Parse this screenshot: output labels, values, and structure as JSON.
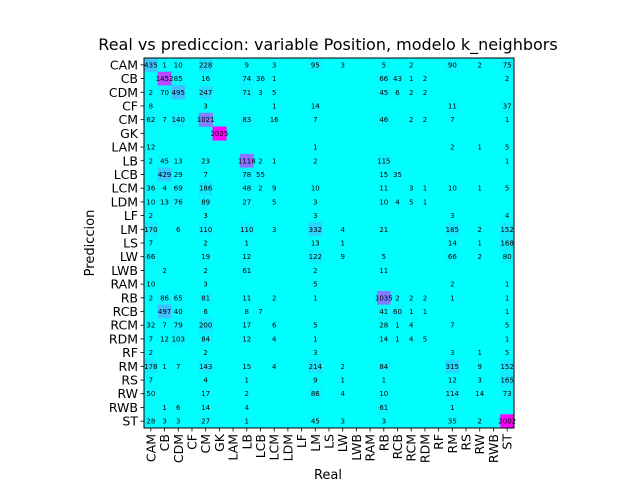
{
  "chart_data": {
    "type": "heatmap",
    "title": "Real vs prediccion: variable Position, modelo k_neighbors",
    "xlabel": "Real",
    "ylabel": "Prediccion",
    "x_categories": [
      "CAM",
      "CB",
      "CDM",
      "CF",
      "CM",
      "GK",
      "LAM",
      "LB",
      "LCB",
      "LCM",
      "LDM",
      "LF",
      "LM",
      "LS",
      "LW",
      "LWB",
      "RAM",
      "RB",
      "RCB",
      "RCM",
      "RDM",
      "RF",
      "RM",
      "RS",
      "RW",
      "RWB",
      "ST"
    ],
    "y_categories": [
      "CAM",
      "CB",
      "CDM",
      "CF",
      "CM",
      "GK",
      "LAM",
      "LB",
      "LCB",
      "LCM",
      "LDM",
      "LF",
      "LM",
      "LS",
      "LW",
      "LWB",
      "RAM",
      "RB",
      "RCB",
      "RCM",
      "RDM",
      "RF",
      "RM",
      "RS",
      "RW",
      "RWB",
      "ST"
    ],
    "colorscale": [
      "#00ffff",
      "#ff00ff"
    ],
    "cells": [
      {
        "row": 0,
        "col": 0,
        "value": 435
      },
      {
        "row": 0,
        "col": 1,
        "value": 1
      },
      {
        "row": 0,
        "col": 2,
        "value": 10
      },
      {
        "row": 0,
        "col": 4,
        "value": 228
      },
      {
        "row": 0,
        "col": 7,
        "value": 9
      },
      {
        "row": 0,
        "col": 9,
        "value": 3
      },
      {
        "row": 0,
        "col": 12,
        "value": 95
      },
      {
        "row": 0,
        "col": 14,
        "value": 3
      },
      {
        "row": 0,
        "col": 17,
        "value": 5
      },
      {
        "row": 0,
        "col": 19,
        "value": 2
      },
      {
        "row": 0,
        "col": 22,
        "value": 90
      },
      {
        "row": 0,
        "col": 24,
        "value": 2
      },
      {
        "row": 0,
        "col": 26,
        "value": 75
      },
      {
        "row": 1,
        "col": 1,
        "value": 1452
      },
      {
        "row": 1,
        "col": 2,
        "value": 85
      },
      {
        "row": 1,
        "col": 4,
        "value": 16
      },
      {
        "row": 1,
        "col": 7,
        "value": 74
      },
      {
        "row": 1,
        "col": 8,
        "value": 36
      },
      {
        "row": 1,
        "col": 9,
        "value": 1
      },
      {
        "row": 1,
        "col": 17,
        "value": 66
      },
      {
        "row": 1,
        "col": 18,
        "value": 43
      },
      {
        "row": 1,
        "col": 19,
        "value": 1
      },
      {
        "row": 1,
        "col": 20,
        "value": 2
      },
      {
        "row": 1,
        "col": 26,
        "value": 2
      },
      {
        "row": 2,
        "col": 0,
        "value": 2
      },
      {
        "row": 2,
        "col": 1,
        "value": 70
      },
      {
        "row": 2,
        "col": 2,
        "value": 495
      },
      {
        "row": 2,
        "col": 4,
        "value": 247
      },
      {
        "row": 2,
        "col": 7,
        "value": 71
      },
      {
        "row": 2,
        "col": 8,
        "value": 3
      },
      {
        "row": 2,
        "col": 9,
        "value": 5
      },
      {
        "row": 2,
        "col": 17,
        "value": 45
      },
      {
        "row": 2,
        "col": 18,
        "value": 6
      },
      {
        "row": 2,
        "col": 19,
        "value": 2
      },
      {
        "row": 2,
        "col": 20,
        "value": 2
      },
      {
        "row": 3,
        "col": 0,
        "value": 8
      },
      {
        "row": 3,
        "col": 4,
        "value": 3
      },
      {
        "row": 3,
        "col": 9,
        "value": 1
      },
      {
        "row": 3,
        "col": 12,
        "value": 14
      },
      {
        "row": 3,
        "col": 22,
        "value": 11
      },
      {
        "row": 3,
        "col": 26,
        "value": 37
      },
      {
        "row": 4,
        "col": 0,
        "value": 62
      },
      {
        "row": 4,
        "col": 1,
        "value": 7
      },
      {
        "row": 4,
        "col": 2,
        "value": 140
      },
      {
        "row": 4,
        "col": 4,
        "value": 1021
      },
      {
        "row": 4,
        "col": 7,
        "value": 83
      },
      {
        "row": 4,
        "col": 9,
        "value": 16
      },
      {
        "row": 4,
        "col": 12,
        "value": 7
      },
      {
        "row": 4,
        "col": 17,
        "value": 46
      },
      {
        "row": 4,
        "col": 19,
        "value": 2
      },
      {
        "row": 4,
        "col": 20,
        "value": 2
      },
      {
        "row": 4,
        "col": 22,
        "value": 7
      },
      {
        "row": 4,
        "col": 26,
        "value": 1
      },
      {
        "row": 5,
        "col": 5,
        "value": 2025
      },
      {
        "row": 6,
        "col": 0,
        "value": 12
      },
      {
        "row": 6,
        "col": 12,
        "value": 1
      },
      {
        "row": 6,
        "col": 22,
        "value": 2
      },
      {
        "row": 6,
        "col": 24,
        "value": 1
      },
      {
        "row": 6,
        "col": 26,
        "value": 5
      },
      {
        "row": 7,
        "col": 0,
        "value": 2
      },
      {
        "row": 7,
        "col": 1,
        "value": 45
      },
      {
        "row": 7,
        "col": 2,
        "value": 13
      },
      {
        "row": 7,
        "col": 4,
        "value": 23
      },
      {
        "row": 7,
        "col": 7,
        "value": 1118
      },
      {
        "row": 7,
        "col": 8,
        "value": 2
      },
      {
        "row": 7,
        "col": 9,
        "value": 1
      },
      {
        "row": 7,
        "col": 12,
        "value": 2
      },
      {
        "row": 7,
        "col": 17,
        "value": 115
      },
      {
        "row": 7,
        "col": 26,
        "value": 1
      },
      {
        "row": 8,
        "col": 1,
        "value": 429
      },
      {
        "row": 8,
        "col": 2,
        "value": 29
      },
      {
        "row": 8,
        "col": 4,
        "value": 7
      },
      {
        "row": 8,
        "col": 7,
        "value": 78
      },
      {
        "row": 8,
        "col": 8,
        "value": 55
      },
      {
        "row": 8,
        "col": 17,
        "value": 15
      },
      {
        "row": 8,
        "col": 18,
        "value": 35
      },
      {
        "row": 9,
        "col": 0,
        "value": 36
      },
      {
        "row": 9,
        "col": 1,
        "value": 4
      },
      {
        "row": 9,
        "col": 2,
        "value": 69
      },
      {
        "row": 9,
        "col": 4,
        "value": 186
      },
      {
        "row": 9,
        "col": 7,
        "value": 48
      },
      {
        "row": 9,
        "col": 8,
        "value": 2
      },
      {
        "row": 9,
        "col": 9,
        "value": 9
      },
      {
        "row": 9,
        "col": 12,
        "value": 10
      },
      {
        "row": 9,
        "col": 17,
        "value": 11
      },
      {
        "row": 9,
        "col": 19,
        "value": 3
      },
      {
        "row": 9,
        "col": 20,
        "value": 1
      },
      {
        "row": 9,
        "col": 22,
        "value": 10
      },
      {
        "row": 9,
        "col": 24,
        "value": 1
      },
      {
        "row": 9,
        "col": 26,
        "value": 5
      },
      {
        "row": 10,
        "col": 0,
        "value": 10
      },
      {
        "row": 10,
        "col": 1,
        "value": 13
      },
      {
        "row": 10,
        "col": 2,
        "value": 76
      },
      {
        "row": 10,
        "col": 4,
        "value": 89
      },
      {
        "row": 10,
        "col": 7,
        "value": 27
      },
      {
        "row": 10,
        "col": 9,
        "value": 5
      },
      {
        "row": 10,
        "col": 12,
        "value": 3
      },
      {
        "row": 10,
        "col": 17,
        "value": 10
      },
      {
        "row": 10,
        "col": 18,
        "value": 4
      },
      {
        "row": 10,
        "col": 19,
        "value": 5
      },
      {
        "row": 10,
        "col": 20,
        "value": 1
      },
      {
        "row": 11,
        "col": 0,
        "value": 2
      },
      {
        "row": 11,
        "col": 4,
        "value": 3
      },
      {
        "row": 11,
        "col": 12,
        "value": 3
      },
      {
        "row": 11,
        "col": 22,
        "value": 3
      },
      {
        "row": 11,
        "col": 26,
        "value": 4
      },
      {
        "row": 12,
        "col": 0,
        "value": 170
      },
      {
        "row": 12,
        "col": 2,
        "value": 6
      },
      {
        "row": 12,
        "col": 4,
        "value": 110
      },
      {
        "row": 12,
        "col": 7,
        "value": 110
      },
      {
        "row": 12,
        "col": 9,
        "value": 3
      },
      {
        "row": 12,
        "col": 12,
        "value": 332
      },
      {
        "row": 12,
        "col": 14,
        "value": 4
      },
      {
        "row": 12,
        "col": 17,
        "value": 21
      },
      {
        "row": 12,
        "col": 22,
        "value": 185
      },
      {
        "row": 12,
        "col": 24,
        "value": 2
      },
      {
        "row": 12,
        "col": 26,
        "value": 152
      },
      {
        "row": 13,
        "col": 0,
        "value": 7
      },
      {
        "row": 13,
        "col": 4,
        "value": 2
      },
      {
        "row": 13,
        "col": 7,
        "value": 1
      },
      {
        "row": 13,
        "col": 12,
        "value": 13
      },
      {
        "row": 13,
        "col": 14,
        "value": 1
      },
      {
        "row": 13,
        "col": 22,
        "value": 14
      },
      {
        "row": 13,
        "col": 24,
        "value": 1
      },
      {
        "row": 13,
        "col": 26,
        "value": 168
      },
      {
        "row": 14,
        "col": 0,
        "value": 66
      },
      {
        "row": 14,
        "col": 4,
        "value": 19
      },
      {
        "row": 14,
        "col": 7,
        "value": 12
      },
      {
        "row": 14,
        "col": 12,
        "value": 122
      },
      {
        "row": 14,
        "col": 14,
        "value": 9
      },
      {
        "row": 14,
        "col": 17,
        "value": 5
      },
      {
        "row": 14,
        "col": 22,
        "value": 66
      },
      {
        "row": 14,
        "col": 24,
        "value": 2
      },
      {
        "row": 14,
        "col": 26,
        "value": 80
      },
      {
        "row": 15,
        "col": 1,
        "value": 2
      },
      {
        "row": 15,
        "col": 4,
        "value": 2
      },
      {
        "row": 15,
        "col": 7,
        "value": 61
      },
      {
        "row": 15,
        "col": 12,
        "value": 2
      },
      {
        "row": 15,
        "col": 17,
        "value": 11
      },
      {
        "row": 16,
        "col": 0,
        "value": 10
      },
      {
        "row": 16,
        "col": 4,
        "value": 3
      },
      {
        "row": 16,
        "col": 12,
        "value": 5
      },
      {
        "row": 16,
        "col": 22,
        "value": 2
      },
      {
        "row": 16,
        "col": 26,
        "value": 1
      },
      {
        "row": 17,
        "col": 0,
        "value": 2
      },
      {
        "row": 17,
        "col": 1,
        "value": 86
      },
      {
        "row": 17,
        "col": 2,
        "value": 65
      },
      {
        "row": 17,
        "col": 4,
        "value": 81
      },
      {
        "row": 17,
        "col": 7,
        "value": 11
      },
      {
        "row": 17,
        "col": 9,
        "value": 2
      },
      {
        "row": 17,
        "col": 12,
        "value": 1
      },
      {
        "row": 17,
        "col": 17,
        "value": 1035
      },
      {
        "row": 17,
        "col": 18,
        "value": 2
      },
      {
        "row": 17,
        "col": 19,
        "value": 2
      },
      {
        "row": 17,
        "col": 20,
        "value": 2
      },
      {
        "row": 17,
        "col": 22,
        "value": 1
      },
      {
        "row": 17,
        "col": 26,
        "value": 1
      },
      {
        "row": 18,
        "col": 1,
        "value": 497
      },
      {
        "row": 18,
        "col": 2,
        "value": 40
      },
      {
        "row": 18,
        "col": 4,
        "value": 6
      },
      {
        "row": 18,
        "col": 7,
        "value": 8
      },
      {
        "row": 18,
        "col": 8,
        "value": 7
      },
      {
        "row": 18,
        "col": 17,
        "value": 41
      },
      {
        "row": 18,
        "col": 18,
        "value": 60
      },
      {
        "row": 18,
        "col": 19,
        "value": 1
      },
      {
        "row": 18,
        "col": 20,
        "value": 1
      },
      {
        "row": 18,
        "col": 26,
        "value": 1
      },
      {
        "row": 19,
        "col": 0,
        "value": 32
      },
      {
        "row": 19,
        "col": 1,
        "value": 7
      },
      {
        "row": 19,
        "col": 2,
        "value": 79
      },
      {
        "row": 19,
        "col": 4,
        "value": 200
      },
      {
        "row": 19,
        "col": 7,
        "value": 17
      },
      {
        "row": 19,
        "col": 9,
        "value": 6
      },
      {
        "row": 19,
        "col": 12,
        "value": 5
      },
      {
        "row": 19,
        "col": 17,
        "value": 28
      },
      {
        "row": 19,
        "col": 18,
        "value": 1
      },
      {
        "row": 19,
        "col": 19,
        "value": 4
      },
      {
        "row": 19,
        "col": 22,
        "value": 7
      },
      {
        "row": 19,
        "col": 26,
        "value": 5
      },
      {
        "row": 20,
        "col": 0,
        "value": 7
      },
      {
        "row": 20,
        "col": 1,
        "value": 12
      },
      {
        "row": 20,
        "col": 2,
        "value": 103
      },
      {
        "row": 20,
        "col": 4,
        "value": 84
      },
      {
        "row": 20,
        "col": 7,
        "value": 12
      },
      {
        "row": 20,
        "col": 9,
        "value": 4
      },
      {
        "row": 20,
        "col": 12,
        "value": 1
      },
      {
        "row": 20,
        "col": 17,
        "value": 14
      },
      {
        "row": 20,
        "col": 18,
        "value": 1
      },
      {
        "row": 20,
        "col": 19,
        "value": 4
      },
      {
        "row": 20,
        "col": 20,
        "value": 5
      },
      {
        "row": 20,
        "col": 26,
        "value": 1
      },
      {
        "row": 21,
        "col": 0,
        "value": 2
      },
      {
        "row": 21,
        "col": 4,
        "value": 2
      },
      {
        "row": 21,
        "col": 12,
        "value": 3
      },
      {
        "row": 21,
        "col": 22,
        "value": 3
      },
      {
        "row": 21,
        "col": 24,
        "value": 1
      },
      {
        "row": 21,
        "col": 26,
        "value": 5
      },
      {
        "row": 22,
        "col": 0,
        "value": 178
      },
      {
        "row": 22,
        "col": 1,
        "value": 1
      },
      {
        "row": 22,
        "col": 2,
        "value": 7
      },
      {
        "row": 22,
        "col": 4,
        "value": 143
      },
      {
        "row": 22,
        "col": 7,
        "value": 15
      },
      {
        "row": 22,
        "col": 9,
        "value": 4
      },
      {
        "row": 22,
        "col": 12,
        "value": 214
      },
      {
        "row": 22,
        "col": 14,
        "value": 2
      },
      {
        "row": 22,
        "col": 17,
        "value": 84
      },
      {
        "row": 22,
        "col": 22,
        "value": 315
      },
      {
        "row": 22,
        "col": 24,
        "value": 9
      },
      {
        "row": 22,
        "col": 26,
        "value": 152
      },
      {
        "row": 23,
        "col": 0,
        "value": 7
      },
      {
        "row": 23,
        "col": 4,
        "value": 4
      },
      {
        "row": 23,
        "col": 7,
        "value": 1
      },
      {
        "row": 23,
        "col": 12,
        "value": 9
      },
      {
        "row": 23,
        "col": 14,
        "value": 1
      },
      {
        "row": 23,
        "col": 17,
        "value": 1
      },
      {
        "row": 23,
        "col": 22,
        "value": 12
      },
      {
        "row": 23,
        "col": 24,
        "value": 3
      },
      {
        "row": 23,
        "col": 26,
        "value": 165
      },
      {
        "row": 24,
        "col": 0,
        "value": 50
      },
      {
        "row": 24,
        "col": 4,
        "value": 17
      },
      {
        "row": 24,
        "col": 7,
        "value": 2
      },
      {
        "row": 24,
        "col": 12,
        "value": 86
      },
      {
        "row": 24,
        "col": 14,
        "value": 4
      },
      {
        "row": 24,
        "col": 17,
        "value": 10
      },
      {
        "row": 24,
        "col": 22,
        "value": 114
      },
      {
        "row": 24,
        "col": 24,
        "value": 14
      },
      {
        "row": 24,
        "col": 26,
        "value": 73
      },
      {
        "row": 25,
        "col": 1,
        "value": 1
      },
      {
        "row": 25,
        "col": 2,
        "value": 6
      },
      {
        "row": 25,
        "col": 4,
        "value": 14
      },
      {
        "row": 25,
        "col": 7,
        "value": 4
      },
      {
        "row": 25,
        "col": 17,
        "value": 61
      },
      {
        "row": 25,
        "col": 22,
        "value": 1
      },
      {
        "row": 26,
        "col": 0,
        "value": 28
      },
      {
        "row": 26,
        "col": 1,
        "value": 3
      },
      {
        "row": 26,
        "col": 2,
        "value": 3
      },
      {
        "row": 26,
        "col": 4,
        "value": 27
      },
      {
        "row": 26,
        "col": 7,
        "value": 1
      },
      {
        "row": 26,
        "col": 12,
        "value": 45
      },
      {
        "row": 26,
        "col": 14,
        "value": 3
      },
      {
        "row": 26,
        "col": 17,
        "value": 3
      },
      {
        "row": 26,
        "col": 22,
        "value": 35
      },
      {
        "row": 26,
        "col": 24,
        "value": 2
      },
      {
        "row": 26,
        "col": 26,
        "value": 2002
      }
    ]
  }
}
